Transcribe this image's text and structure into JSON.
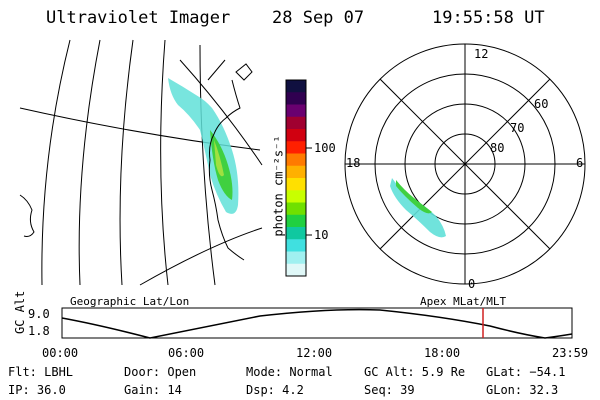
{
  "header": {
    "title": "Ultraviolet Imager",
    "date": "28 Sep 07",
    "time": "19:55:58 UT"
  },
  "colorbar": {
    "label": "photon cm⁻²s⁻¹",
    "ticks": [
      "100",
      "10"
    ],
    "colors": [
      "#101040",
      "#300050",
      "#6a0070",
      "#a00030",
      "#d00010",
      "#ff2000",
      "#ff7a00",
      "#ffb000",
      "#ffe000",
      "#c8ff00",
      "#70e000",
      "#20d040",
      "#10c8a0",
      "#40e0e0",
      "#a0f0f0",
      "#e0f8f8"
    ]
  },
  "polar": {
    "mlt_labels": {
      "top": "12",
      "left": "18",
      "right": "6",
      "bottom": "0"
    },
    "lat_labels": [
      "60",
      "70",
      "80"
    ]
  },
  "panels": {
    "left_label": "Geographic Lat/Lon",
    "right_label": "Apex MLat/MLT"
  },
  "timeline": {
    "ylabel": "GC Alt",
    "ymax": "9.0",
    "ymin": "1.8",
    "ticks": [
      "00:00",
      "06:00",
      "12:00",
      "18:00",
      "23:59"
    ],
    "marker_color": "#d02020"
  },
  "info": {
    "flt": "Flt: LBHL",
    "ip": "IP: 36.0",
    "door": "Door: Open",
    "gain": "Gain: 14",
    "mode": "Mode: Normal",
    "dsp": "Dsp:    4.2",
    "gcalt": "GC Alt: 5.9 Re",
    "seq": "Seq: 39",
    "glat": "GLat: −54.1",
    "glon": "GLon:  32.3"
  }
}
